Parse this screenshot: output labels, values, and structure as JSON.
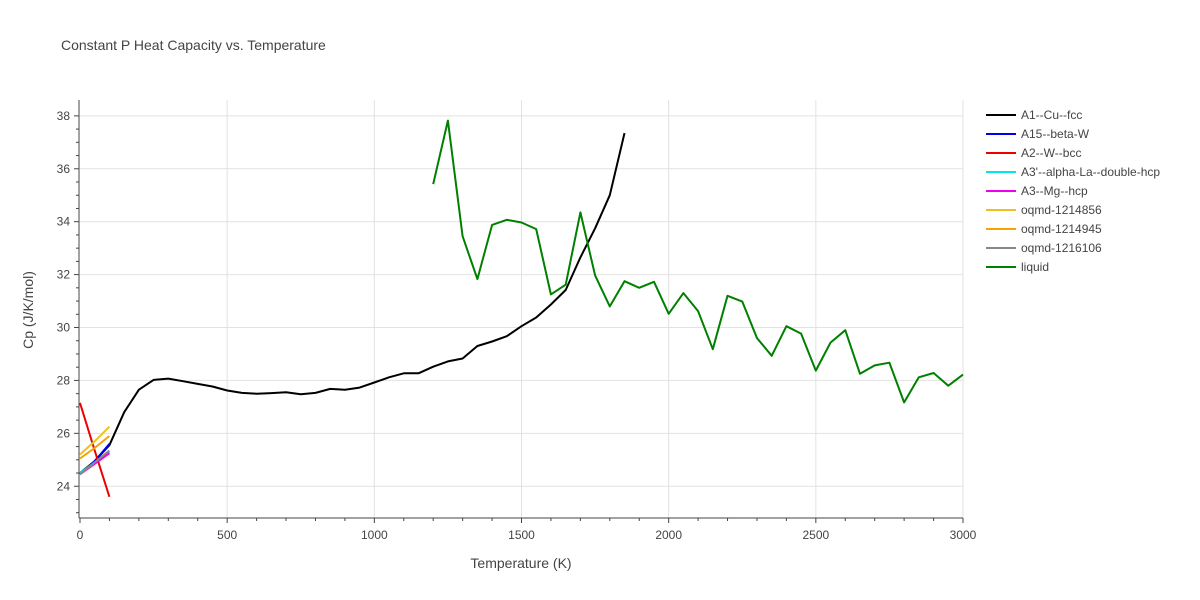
{
  "chart_data": {
    "type": "line",
    "title": "Constant P Heat Capacity vs. Temperature",
    "xlabel": "Temperature (K)",
    "ylabel": "Cp (J/K/mol)",
    "xlim": [
      0,
      3000
    ],
    "ylim": [
      22.8,
      38.6
    ],
    "xticks": [
      0,
      500,
      1000,
      1500,
      2000,
      2500,
      3000
    ],
    "yticks": [
      24,
      26,
      28,
      30,
      32,
      34,
      36,
      38
    ],
    "grid": true,
    "legend_position": "right",
    "series": [
      {
        "name": "A1--Cu--fcc",
        "color": "#000000",
        "x": [
          0,
          50,
          100,
          150,
          200,
          250,
          300,
          350,
          400,
          450,
          500,
          550,
          600,
          650,
          700,
          750,
          800,
          850,
          900,
          950,
          1000,
          1050,
          1100,
          1150,
          1200,
          1250,
          1300,
          1350,
          1400,
          1450,
          1500,
          1550,
          1600,
          1650,
          1700,
          1750,
          1800,
          1850
        ],
        "y": [
          24.5,
          24.95,
          25.55,
          26.8,
          27.65,
          28.02,
          28.07,
          27.97,
          27.87,
          27.77,
          27.62,
          27.53,
          27.5,
          27.52,
          27.55,
          27.48,
          27.53,
          27.68,
          27.65,
          27.73,
          27.92,
          28.12,
          28.27,
          28.27,
          28.52,
          28.72,
          28.83,
          29.3,
          29.47,
          29.67,
          30.05,
          30.38,
          30.87,
          31.42,
          32.65,
          33.75,
          35.0,
          37.35
        ]
      },
      {
        "name": "A15--beta-W",
        "color": "#0000ee",
        "x": [
          0,
          50,
          100
        ],
        "y": [
          24.45,
          24.95,
          25.6
        ]
      },
      {
        "name": "A2--W--bcc",
        "color": "#ee0000",
        "x": [
          0,
          50,
          100
        ],
        "y": [
          27.15,
          25.35,
          23.6
        ]
      },
      {
        "name": "A3'--alpha-La--double-hcp",
        "color": "#00e5ee",
        "x": [
          0,
          50,
          100
        ],
        "y": [
          24.5,
          24.9,
          25.3
        ]
      },
      {
        "name": "A3--Mg--hcp",
        "color": "#ee00ee",
        "x": [
          0,
          50,
          100
        ],
        "y": [
          24.45,
          24.85,
          25.25
        ]
      },
      {
        "name": "oqmd-1214856",
        "color": "#f0c020",
        "x": [
          0,
          50,
          100
        ],
        "y": [
          25.2,
          25.7,
          26.25
        ]
      },
      {
        "name": "oqmd-1214945",
        "color": "#f5a300",
        "x": [
          0,
          50,
          100
        ],
        "y": [
          25.05,
          25.45,
          25.9
        ]
      },
      {
        "name": "oqmd-1216106",
        "color": "#888888",
        "x": [
          0,
          50,
          100
        ],
        "y": [
          24.45,
          24.9,
          25.35
        ]
      },
      {
        "name": "liquid",
        "color": "#008000",
        "x": [
          1200,
          1250,
          1300,
          1350,
          1400,
          1450,
          1500,
          1550,
          1600,
          1650,
          1700,
          1750,
          1800,
          1850,
          1900,
          1950,
          2000,
          2050,
          2100,
          2150,
          2200,
          2250,
          2300,
          2350,
          2400,
          2450,
          2500,
          2550,
          2600,
          2650,
          2700,
          2750,
          2800,
          2850,
          2900,
          2950,
          3000
        ],
        "y": [
          35.42,
          37.82,
          33.45,
          31.83,
          33.88,
          34.07,
          33.97,
          33.72,
          31.25,
          31.62,
          34.35,
          31.97,
          30.8,
          31.75,
          31.5,
          31.73,
          30.52,
          31.3,
          30.62,
          29.18,
          31.2,
          30.98,
          29.6,
          28.93,
          30.05,
          29.77,
          28.37,
          29.43,
          29.9,
          28.25,
          28.57,
          28.67,
          27.17,
          28.12,
          28.28,
          27.8,
          28.22
        ]
      }
    ]
  }
}
